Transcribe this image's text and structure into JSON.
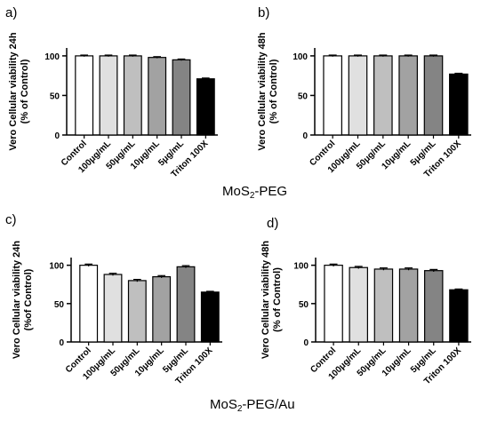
{
  "section_titles": [
    {
      "main": "MoS",
      "sub": "2",
      "rest": "-PEG"
    },
    {
      "main": "MoS",
      "sub": "2",
      "rest": "-PEG/Au"
    }
  ],
  "colors": {
    "bar_fills": [
      "#ffffff",
      "#e0e0e0",
      "#bfbfbf",
      "#a2a2a2",
      "#848484",
      "#000000"
    ],
    "stroke": "#000000"
  },
  "chart_data": [
    {
      "type": "bar",
      "panel": "a)",
      "ylabel": [
        "Vero Cellular viability 24h",
        "(% of Control)"
      ],
      "categories": [
        "Control",
        "100μg/mL",
        "50μg/mL",
        "10μg/mL",
        "5μg/mL",
        "Triton 100X"
      ],
      "values": [
        100,
        100,
        100,
        98,
        95,
        71
      ],
      "errors": [
        1,
        1,
        1,
        1,
        1,
        1
      ],
      "ylim": [
        0,
        110
      ],
      "yticks": [
        0,
        50,
        100
      ]
    },
    {
      "type": "bar",
      "panel": "b)",
      "ylabel": [
        "Vero Cellular viability 48h",
        "(% of Control)"
      ],
      "categories": [
        "Control",
        "100μg/mL",
        "50μg/mL",
        "10μg/mL",
        "5μg/mL",
        "Triton 100X"
      ],
      "values": [
        100,
        100,
        100,
        100,
        100,
        77
      ],
      "errors": [
        1,
        1,
        1,
        1,
        1,
        1
      ],
      "ylim": [
        0,
        110
      ],
      "yticks": [
        0,
        50,
        100
      ]
    },
    {
      "type": "bar",
      "panel": "c)",
      "ylabel": [
        "Vero Cellular viability 24h",
        "(%of Control)"
      ],
      "categories": [
        "Control",
        "100μg/mL",
        "50μg/mL",
        "10μg/mL",
        "5μg/mL",
        "Triton 100X"
      ],
      "values": [
        100,
        88,
        80,
        85,
        98,
        65
      ],
      "errors": [
        1.5,
        1.5,
        1.5,
        1.5,
        1.5,
        1
      ],
      "ylim": [
        0,
        110
      ],
      "yticks": [
        0,
        50,
        100
      ]
    },
    {
      "type": "bar",
      "panel": "d)",
      "ylabel": [
        "Vero Cellular viability 48h",
        "(% of Control)"
      ],
      "categories": [
        "Control",
        "100μg/mL",
        "50μg/mL",
        "10μg/mL",
        "5μg/mL",
        "Triton 100X"
      ],
      "values": [
        100,
        97,
        95,
        95,
        93,
        68
      ],
      "errors": [
        1.5,
        1.5,
        1.5,
        1.5,
        1.5,
        1
      ],
      "ylim": [
        0,
        110
      ],
      "yticks": [
        0,
        50,
        100
      ]
    }
  ]
}
